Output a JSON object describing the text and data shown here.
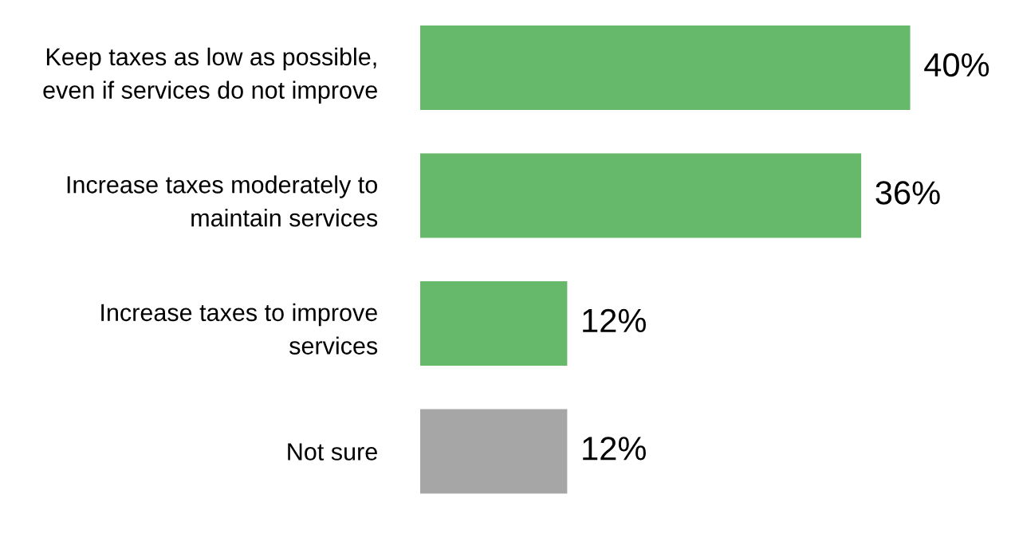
{
  "chart_data": {
    "type": "bar",
    "orientation": "horizontal",
    "categories": [
      "Keep taxes as low as possible,\neven if services do not improve",
      "Increase taxes moderately to\nmaintain services",
      "Increase taxes to improve\nservices",
      "Not sure"
    ],
    "values": [
      40,
      36,
      12,
      12
    ],
    "colors": [
      "#66b86a",
      "#66b86a",
      "#66b86a",
      "#a6a6a6"
    ],
    "value_labels": [
      "40%",
      "36%",
      "12%",
      "12%"
    ],
    "grid": false,
    "legend": false
  }
}
